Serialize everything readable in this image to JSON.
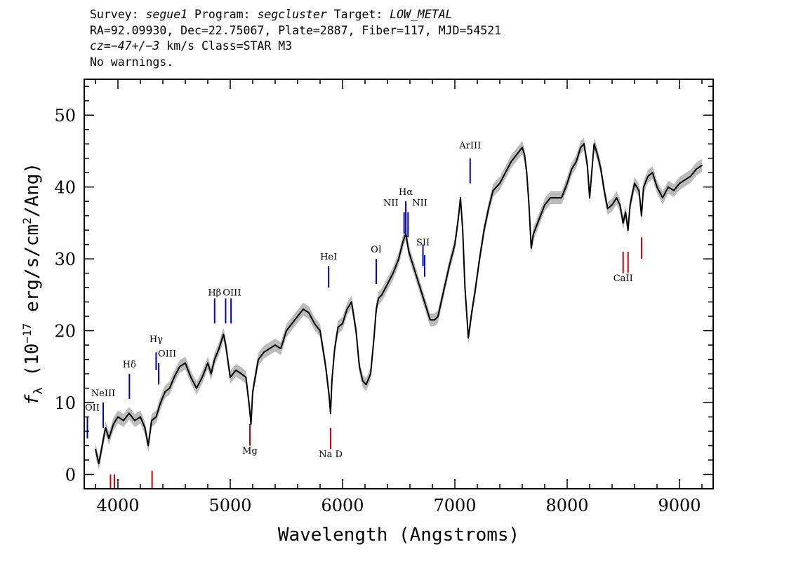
{
  "header": {
    "line1": {
      "survey_label": "Survey: ",
      "survey": "segue1",
      "program_label": " Program: ",
      "program": "segcluster",
      "target_label": " Target: ",
      "target": "LOW_METAL"
    },
    "line2": "RA=92.09930, Dec=22.75067, Plate=2887, Fiber=117, MJD=54521",
    "line3": {
      "cz_label": "cz=",
      "cz": "−47+/−3",
      "cz_rest": " km/s Class=STAR M3"
    },
    "line4": "No warnings."
  },
  "chart_data": {
    "type": "line",
    "xlabel": "Wavelength (Angstroms)",
    "ylabel": {
      "prefix": "f",
      "subscript": "λ",
      "unit_start": " (10",
      "exp1": "−17",
      "unit_mid": " erg/s/cm",
      "exp2": "2",
      "unit_end": "/Ang)"
    },
    "xlim": [
      3700,
      9300
    ],
    "ylim": [
      -2,
      55
    ],
    "x_ticks": [
      4000,
      5000,
      6000,
      7000,
      8000,
      9000
    ],
    "x_tick_labels": [
      "4000",
      "5000",
      "6000",
      "7000",
      "8000",
      "9000"
    ],
    "y_ticks": [
      0,
      10,
      20,
      30,
      40,
      50
    ],
    "y_tick_labels": [
      "0",
      "10",
      "20",
      "30",
      "40",
      "50"
    ],
    "series": [
      {
        "color": "#000000",
        "error_color": "#bbbbbb",
        "x": [
          3800,
          3830,
          3860,
          3890,
          3920,
          3960,
          4000,
          4050,
          4100,
          4150,
          4200,
          4240,
          4270,
          4300,
          4340,
          4380,
          4420,
          4460,
          4500,
          4550,
          4600,
          4650,
          4700,
          4750,
          4800,
          4830,
          4860,
          4900,
          4940,
          4960,
          5000,
          5050,
          5100,
          5140,
          5170,
          5185,
          5200,
          5250,
          5300,
          5350,
          5400,
          5450,
          5500,
          5550,
          5600,
          5650,
          5700,
          5750,
          5800,
          5850,
          5880,
          5893,
          5905,
          5930,
          5960,
          6000,
          6040,
          6080,
          6120,
          6150,
          6180,
          6210,
          6250,
          6280,
          6300,
          6320,
          6350,
          6400,
          6450,
          6500,
          6540,
          6563,
          6590,
          6620,
          6660,
          6700,
          6740,
          6780,
          6820,
          6850,
          6900,
          6950,
          7000,
          7030,
          7050,
          7070,
          7090,
          7120,
          7150,
          7180,
          7220,
          7260,
          7300,
          7340,
          7400,
          7450,
          7500,
          7550,
          7600,
          7620,
          7640,
          7660,
          7680,
          7700,
          7750,
          7800,
          7850,
          7900,
          7950,
          8000,
          8040,
          8080,
          8120,
          8150,
          8180,
          8200,
          8240,
          8270,
          8300,
          8330,
          8360,
          8400,
          8440,
          8470,
          8498,
          8520,
          8542,
          8560,
          8600,
          8640,
          8662,
          8680,
          8720,
          8760,
          8800,
          8850,
          8900,
          8950,
          9000,
          9050,
          9100,
          9150,
          9200
        ],
        "y": [
          3.5,
          1.5,
          4.0,
          6.5,
          5.0,
          7.0,
          8.0,
          7.5,
          8.5,
          7.5,
          8.0,
          6.5,
          4.0,
          7.5,
          8.0,
          10.0,
          11.5,
          12.0,
          13.5,
          15.0,
          15.5,
          13.5,
          12.0,
          13.5,
          15.5,
          14.0,
          16.0,
          17.5,
          19.5,
          18.0,
          13.5,
          14.5,
          14.0,
          13.5,
          9.5,
          7.0,
          11.5,
          16.0,
          17.0,
          17.5,
          18.0,
          17.5,
          20.0,
          21.0,
          22.0,
          23.0,
          22.5,
          21.0,
          20.0,
          15.0,
          11.0,
          8.5,
          13.0,
          17.5,
          20.5,
          21.0,
          23.0,
          24.0,
          20.0,
          15.0,
          13.0,
          12.5,
          14.0,
          19.0,
          23.0,
          24.5,
          25.0,
          26.5,
          28.0,
          30.0,
          32.5,
          33.5,
          31.0,
          29.5,
          27.5,
          25.5,
          23.5,
          21.5,
          21.5,
          22.0,
          25.5,
          29.0,
          32.0,
          35.5,
          38.5,
          34.0,
          26.0,
          19.0,
          22.5,
          25.5,
          30.0,
          34.0,
          37.0,
          39.5,
          40.5,
          42.0,
          43.5,
          44.5,
          45.5,
          44.5,
          42.0,
          37.5,
          31.5,
          33.5,
          35.5,
          37.5,
          38.5,
          38.5,
          38.5,
          40.5,
          42.5,
          43.5,
          45.5,
          46.0,
          43.0,
          38.5,
          46.0,
          44.5,
          42.5,
          39.5,
          37.0,
          37.5,
          38.5,
          37.5,
          35.0,
          36.5,
          34.0,
          37.5,
          40.5,
          39.5,
          36.0,
          40.0,
          41.5,
          42.0,
          40.0,
          38.5,
          40.0,
          39.5,
          40.5,
          41.0,
          41.5,
          42.5,
          43.0
        ]
      }
    ],
    "emission_lines": [
      {
        "label": "OII",
        "wave": 3728,
        "color": "#0000cc",
        "y_top": 8,
        "y_bottom": 5,
        "label_y": 8.5
      },
      {
        "label": "NeIII",
        "wave": 3869,
        "color": "#0000cc",
        "y_top": 10,
        "y_bottom": 6.5,
        "label_y": 10.5
      },
      {
        "label": "Hδ",
        "wave": 4102,
        "color": "#0000cc",
        "y_top": 14,
        "y_bottom": 10.5,
        "label_y": 14.5
      },
      {
        "label": "Hγ",
        "wave": 4340,
        "color": "#0000cc",
        "y_top": 17,
        "y_bottom": 14.5,
        "label_y": 18
      },
      {
        "label": "OIII",
        "wave": 4363,
        "color": "#0000cc",
        "y_top": 15.5,
        "y_bottom": 12.5,
        "label_y": 16
      },
      {
        "label": "Hβ",
        "wave": 4861,
        "color": "#0000cc",
        "y_top": 24.5,
        "y_bottom": 21,
        "label_y": 24.5
      },
      {
        "label": "OIII",
        "wave": 4959,
        "color": "#0000cc",
        "y_top": 24.5,
        "y_bottom": 21,
        "label_y": 24.5
      },
      {
        "label": "",
        "wave": 5007,
        "color": "#0000cc",
        "y_top": 24.5,
        "y_bottom": 21,
        "label_y": 24.5
      },
      {
        "label": "HeI",
        "wave": 5876,
        "color": "#0000cc",
        "y_top": 29,
        "y_bottom": 26,
        "label_y": 29.5
      },
      {
        "label": "OI",
        "wave": 6300,
        "color": "#0000cc",
        "y_top": 30,
        "y_bottom": 26.5,
        "label_y": 30.5
      },
      {
        "label": "NII",
        "wave": 6548,
        "color": "#0000cc",
        "y_top": 36.5,
        "y_bottom": 33.5,
        "label_y": 37
      },
      {
        "label": "Hα",
        "wave": 6563,
        "color": "#0000cc",
        "y_top": 38,
        "y_bottom": 33.5,
        "label_y": 38.5
      },
      {
        "label": "NII",
        "wave": 6583,
        "color": "#0000cc",
        "y_top": 36.5,
        "y_bottom": 33,
        "label_y": 37
      },
      {
        "label": "SII",
        "wave": 6716,
        "color": "#0000cc",
        "y_top": 32,
        "y_bottom": 29,
        "label_y": 31.5
      },
      {
        "label": "",
        "wave": 6731,
        "color": "#0000cc",
        "y_top": 30.5,
        "y_bottom": 27.5,
        "label_y": 31.5
      },
      {
        "label": "ArIII",
        "wave": 7136,
        "color": "#0000cc",
        "y_top": 44,
        "y_bottom": 40.5,
        "label_y": 45
      },
      {
        "label": "",
        "wave": 3934,
        "color": "#cc0000",
        "y_top": 0,
        "y_bottom": -2,
        "label_y": -5
      },
      {
        "label": "",
        "wave": 3969,
        "color": "#cc0000",
        "y_top": 0,
        "y_bottom": -2,
        "label_y": -5
      },
      {
        "label": "",
        "wave": 4304,
        "color": "#cc0000",
        "y_top": 0.5,
        "y_bottom": -2,
        "label_y": -5
      },
      {
        "label": "Mg",
        "wave": 5175,
        "color": "#cc0000",
        "y_top": 7,
        "y_bottom": 4,
        "label_y": 2.5
      },
      {
        "label": "Na D",
        "wave": 5894,
        "color": "#cc0000",
        "y_top": 6.5,
        "y_bottom": 3.5,
        "label_y": 2
      },
      {
        "label": "CaII",
        "wave": 8498,
        "color": "#cc0000",
        "y_top": 31,
        "y_bottom": 28,
        "label_y": 26.5
      },
      {
        "label": "",
        "wave": 8542,
        "color": "#cc0000",
        "y_top": 31,
        "y_bottom": 28,
        "label_y": 26.5
      },
      {
        "label": "",
        "wave": 8662,
        "color": "#cc0000",
        "y_top": 33,
        "y_bottom": 30,
        "label_y": 26.5
      }
    ]
  }
}
